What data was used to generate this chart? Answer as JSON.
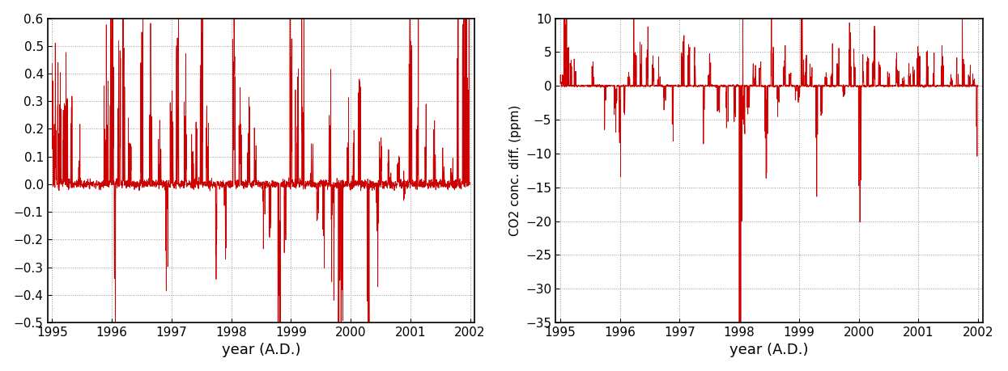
{
  "left_ylim": [
    -0.5,
    0.6
  ],
  "left_yticks": [
    -0.5,
    -0.4,
    -0.3,
    -0.2,
    -0.1,
    0.0,
    0.1,
    0.2,
    0.3,
    0.4,
    0.5,
    0.6
  ],
  "right_ylim": [
    -35,
    10
  ],
  "right_yticks": [
    -35,
    -30,
    -25,
    -20,
    -15,
    -10,
    -5,
    0,
    5,
    10
  ],
  "xlim": [
    1994.92,
    2002.08
  ],
  "xticks": [
    1995,
    1996,
    1997,
    1998,
    1999,
    2000,
    2001,
    2002
  ],
  "xlabel": "year (A.D.)",
  "right_ylabel": "CO2 conc. diff. (ppm)",
  "line_color": "#cc0000",
  "line_width": 0.6,
  "bg_color": "#ffffff",
  "grid_color": "#999999",
  "grid_style": "dotted"
}
